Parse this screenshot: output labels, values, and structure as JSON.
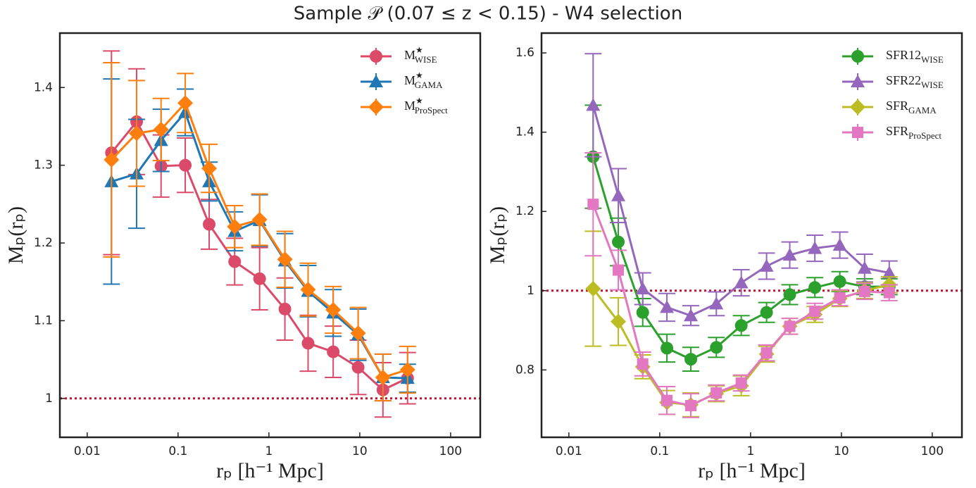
{
  "title": "Sample 𝒫 (0.07 ≤ z < 0.15) -  W4 selection",
  "chart_data": [
    {
      "type": "line",
      "xlabel": "rₚ  [h⁻¹ Mpc]",
      "ylabel": "Mₚ(rₚ)",
      "log_x": true,
      "xlim": [
        0.005,
        212
      ],
      "xticks": [
        0.01,
        0.1,
        1,
        10,
        100
      ],
      "ylim": [
        0.95,
        1.47
      ],
      "yticks": [
        1,
        1.1,
        1.2,
        1.3,
        1.4
      ],
      "reference_line": 1,
      "reference_color": "#c8102e",
      "legend": "upper right",
      "x": [
        0.0185,
        0.035,
        0.065,
        0.12,
        0.22,
        0.42,
        0.79,
        1.5,
        2.7,
        5.1,
        9.6,
        18,
        33.6
      ],
      "series": [
        {
          "name": "M",
          "superscript": "★",
          "subscript": "WISE",
          "color": "#dc4a6a",
          "marker": "circle",
          "values": [
            1.316,
            1.356,
            1.299,
            1.3,
            1.224,
            1.176,
            1.154,
            1.115,
            1.071,
            1.06,
            1.04,
            1.011,
            1.026
          ],
          "errors": [
            0.131,
            0.068,
            0.04,
            0.035,
            0.032,
            0.03,
            0.04,
            0.04,
            0.036,
            0.033,
            0.035,
            0.035,
            0.033
          ]
        },
        {
          "name": "M",
          "superscript": "★",
          "subscript": "GAMA",
          "color": "#1f77b4",
          "marker": "triangle",
          "values": [
            1.279,
            1.289,
            1.332,
            1.368,
            1.279,
            1.215,
            1.229,
            1.177,
            1.138,
            1.11,
            1.082,
            1.027,
            1.026
          ],
          "errors": [
            0.132,
            0.07,
            0.04,
            0.03,
            0.025,
            0.025,
            0.033,
            0.035,
            0.033,
            0.03,
            0.033,
            0.03,
            0.018
          ]
        },
        {
          "name": "M",
          "superscript": "★",
          "subscript": "ProSpect",
          "color": "#ff7f0e",
          "marker": "diamond",
          "values": [
            1.307,
            1.341,
            1.346,
            1.38,
            1.296,
            1.221,
            1.23,
            1.179,
            1.14,
            1.114,
            1.084,
            1.027,
            1.037
          ],
          "errors": [
            0.125,
            0.068,
            0.04,
            0.038,
            0.031,
            0.027,
            0.033,
            0.036,
            0.034,
            0.03,
            0.033,
            0.03,
            0.03
          ]
        }
      ]
    },
    {
      "type": "line",
      "xlabel": "rₚ  [h⁻¹ Mpc]",
      "ylabel": "Mₚ(rₚ)",
      "log_x": true,
      "xlim": [
        0.005,
        212
      ],
      "xticks": [
        0.01,
        0.1,
        1,
        10,
        100
      ],
      "ylim": [
        0.63,
        1.65
      ],
      "yticks": [
        0.8,
        1,
        1.2,
        1.4,
        1.6
      ],
      "reference_line": 1,
      "reference_color": "#c8102e",
      "legend": "upper right",
      "x": [
        0.0185,
        0.035,
        0.065,
        0.12,
        0.22,
        0.42,
        0.79,
        1.5,
        2.7,
        5.1,
        9.6,
        18,
        33.6
      ],
      "series": [
        {
          "name": "SFR12",
          "subscript": "WISE",
          "color": "#2ca02c",
          "marker": "circle",
          "values": [
            1.338,
            1.123,
            0.945,
            0.855,
            0.827,
            0.857,
            0.912,
            0.945,
            0.99,
            1.008,
            1.023,
            1.01,
            1.01
          ],
          "errors": [
            0.13,
            0.06,
            0.035,
            0.035,
            0.03,
            0.025,
            0.025,
            0.025,
            0.025,
            0.025,
            0.025,
            0.02,
            0.02
          ]
        },
        {
          "name": "SFR22",
          "subscript": "WISE",
          "color": "#9467bd",
          "marker": "triangle",
          "values": [
            1.468,
            1.24,
            1.005,
            0.958,
            0.937,
            0.967,
            1.02,
            1.062,
            1.09,
            1.107,
            1.115,
            1.057,
            1.045
          ],
          "errors": [
            0.13,
            0.068,
            0.04,
            0.035,
            0.025,
            0.03,
            0.033,
            0.033,
            0.033,
            0.033,
            0.033,
            0.035,
            0.03
          ]
        },
        {
          "name": "SFR",
          "subscript": "GAMA",
          "color": "#bcbd22",
          "marker": "diamond",
          "values": [
            1.005,
            0.922,
            0.808,
            0.718,
            0.712,
            0.74,
            0.76,
            0.84,
            0.91,
            0.94,
            0.98,
            1.0,
            1.015
          ],
          "errors": [
            0.145,
            0.06,
            0.03,
            0.03,
            0.03,
            0.02,
            0.025,
            0.02,
            0.02,
            0.02,
            0.02,
            0.02,
            0.02
          ]
        },
        {
          "name": "SFR",
          "subscript": "ProSpect",
          "color": "#e377c2",
          "marker": "square",
          "values": [
            1.218,
            1.052,
            0.815,
            0.723,
            0.71,
            0.742,
            0.767,
            0.843,
            0.91,
            0.948,
            0.982,
            0.998,
            0.995
          ],
          "errors": [
            0.13,
            0.05,
            0.03,
            0.035,
            0.03,
            0.02,
            0.02,
            0.02,
            0.02,
            0.02,
            0.02,
            0.02,
            0.02
          ]
        }
      ]
    }
  ]
}
